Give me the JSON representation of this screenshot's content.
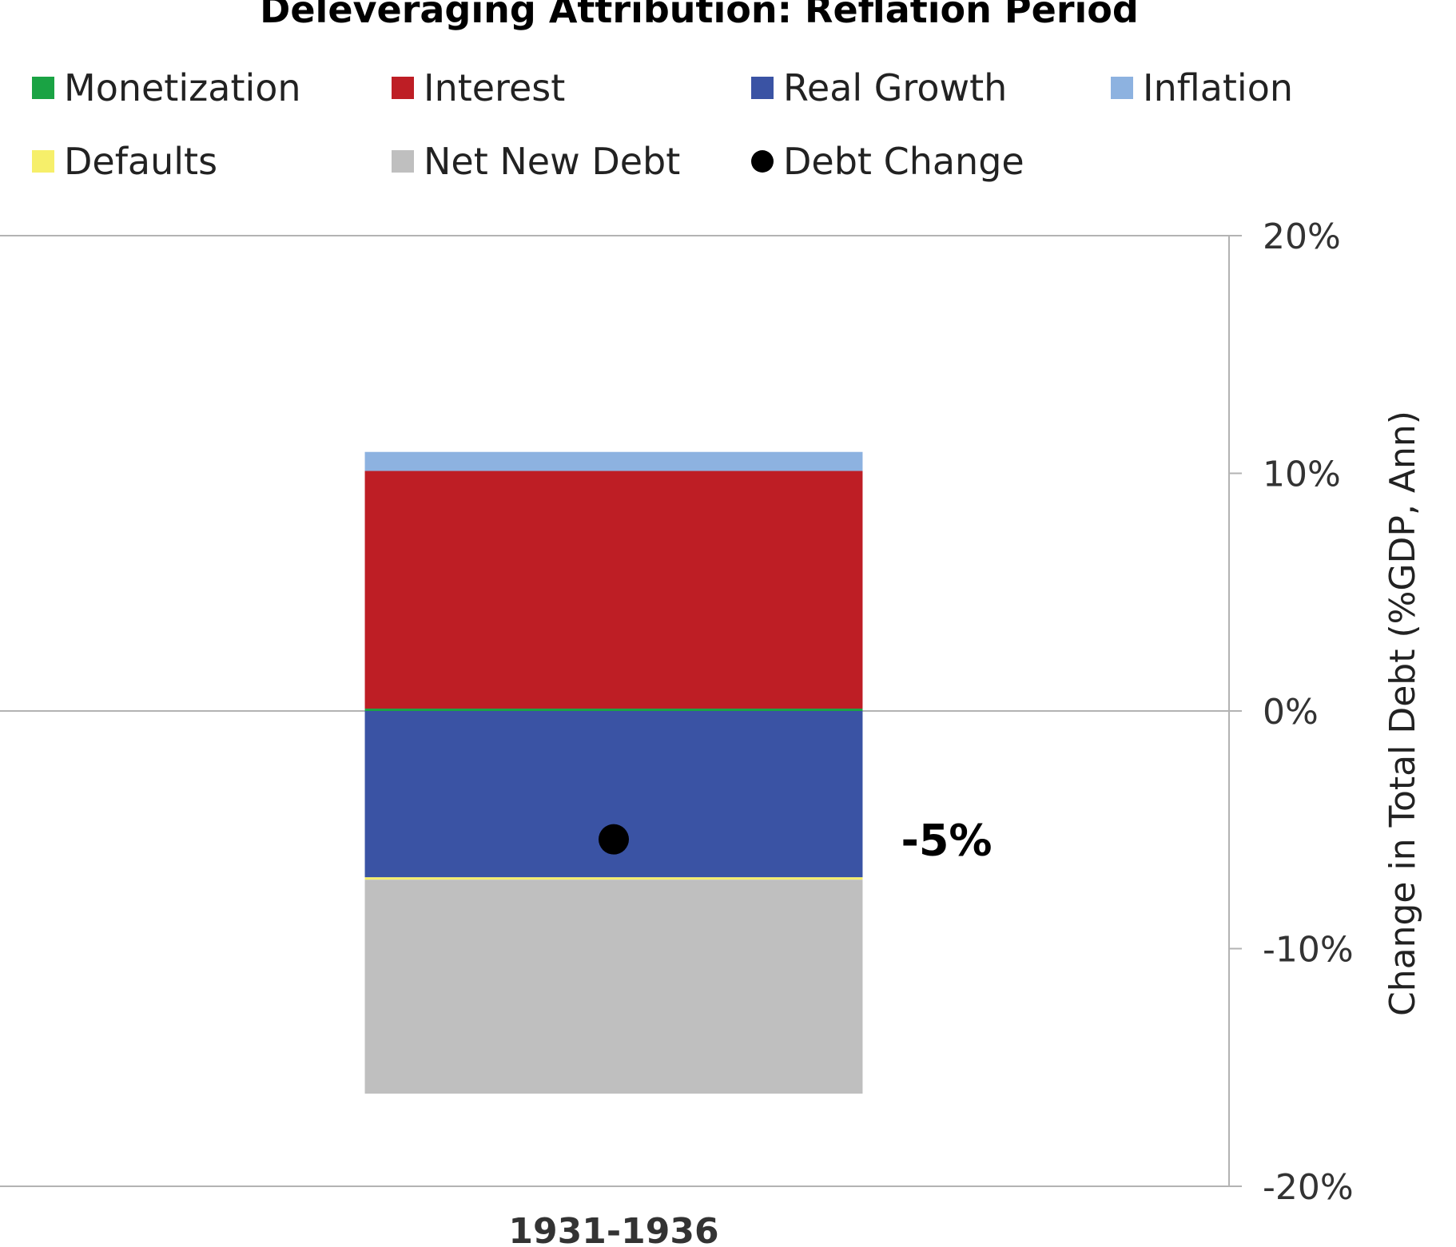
{
  "chart_data": {
    "type": "bar",
    "stacked": true,
    "title": "Deleveraging Attribution: Reflation Period",
    "ylabel": "Change in Total Debt (%GDP, Ann)",
    "xlabel": "",
    "categories": [
      "1931-1936"
    ],
    "ylim": [
      -20,
      20
    ],
    "yticks": [
      20,
      10,
      0,
      -10,
      -20
    ],
    "ytick_labels": [
      "20%",
      "10%",
      "0%",
      "-10%",
      "-20%"
    ],
    "y_axis_position": "right",
    "grid": "horizontal at 20%, 0% and -20%",
    "legend_position": "top",
    "series": [
      {
        "name": "Monetization",
        "color": "#1aa344",
        "values": [
          0.1
        ]
      },
      {
        "name": "Interest",
        "color": "#be1e25",
        "values": [
          10.0
        ]
      },
      {
        "name": "Real Growth",
        "color": "#3a53a4",
        "values": [
          -7.0
        ]
      },
      {
        "name": "Inflation",
        "color": "#8db2e0",
        "values": [
          0.8
        ]
      },
      {
        "name": "Defaults",
        "color": "#f6ef6a",
        "values": [
          -0.1
        ]
      },
      {
        "name": "Net New Debt",
        "color": "#bfbfbf",
        "values": [
          -9.0
        ]
      }
    ],
    "debt_change": {
      "name": "Debt Change",
      "color": "#000000",
      "values": [
        -5.4
      ],
      "label": "-5%"
    }
  }
}
